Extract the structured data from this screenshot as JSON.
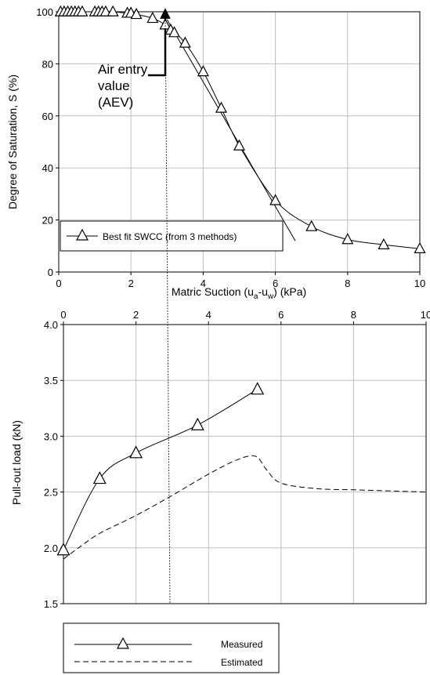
{
  "chart_data": [
    {
      "type": "scatter",
      "xlabel": "Matric Suction (u",
      "xlabel_sub_a": "a",
      "xlabel_mid": "-u",
      "xlabel_sub_w": "w",
      "xlabel_end": ") (kPa)",
      "ylabel": "Degree of Saturation, S (%)",
      "xlim": [
        0,
        10
      ],
      "ylim": [
        0,
        100
      ],
      "xticks": [
        "0",
        "2",
        "4",
        "6",
        "8",
        "10"
      ],
      "yticks": [
        "0",
        "20",
        "40",
        "60",
        "80",
        "100"
      ],
      "grid": true,
      "legend_position": "lower-left",
      "annotation": {
        "lines": [
          "Air entry",
          "value",
          "(AEV)"
        ],
        "aev_point": [
          2.95,
          99
        ]
      },
      "series": [
        {
          "name": "Best fit SWCC (from 3 methods)",
          "marker": "triangle",
          "x": [
            0.05,
            0.15,
            0.25,
            0.35,
            0.45,
            0.55,
            0.65,
            1.0,
            1.1,
            1.2,
            1.3,
            1.5,
            1.9,
            2.0,
            2.15,
            2.6,
            2.95,
            3.1,
            3.2,
            3.5,
            4.0,
            4.5,
            5.0,
            6.0,
            7.0,
            8.0,
            9.0,
            10.0
          ],
          "y": [
            100,
            100,
            100,
            100,
            100,
            100,
            100,
            100,
            100,
            100,
            100,
            100,
            99.5,
            99.5,
            99,
            97.5,
            95,
            93,
            92,
            88,
            77,
            63,
            48.5,
            27.5,
            17.5,
            12.5,
            10.5,
            9
          ]
        }
      ],
      "tangent_line": {
        "x": [
          3.0,
          6.55
        ],
        "y": [
          97,
          12
        ]
      }
    },
    {
      "type": "line",
      "ylabel": "Pull-out load (kN)",
      "xlim": [
        0,
        10
      ],
      "ylim": [
        1.5,
        4.0
      ],
      "xticks": [
        "0",
        "2",
        "4",
        "6",
        "8",
        "10"
      ],
      "yticks": [
        "1.5",
        "2.0",
        "2.5",
        "3.0",
        "3.5",
        "4.0"
      ],
      "grid": true,
      "legend_position": "below",
      "series": [
        {
          "name": "Measured",
          "marker": "triangle",
          "style": "solid",
          "x": [
            0,
            1.0,
            2.0,
            3.7,
            5.35
          ],
          "y": [
            1.98,
            2.62,
            2.85,
            3.1,
            3.42
          ]
        },
        {
          "name": "Estimated",
          "style": "dashed",
          "x": [
            0,
            0.5,
            1.0,
            2.0,
            3.0,
            4.0,
            4.8,
            5.3,
            5.6,
            6.0,
            7.0,
            8.0,
            9.0,
            10.0
          ],
          "y": [
            1.9,
            2.02,
            2.13,
            2.29,
            2.47,
            2.66,
            2.79,
            2.82,
            2.7,
            2.58,
            2.53,
            2.52,
            2.51,
            2.5
          ]
        }
      ]
    }
  ]
}
